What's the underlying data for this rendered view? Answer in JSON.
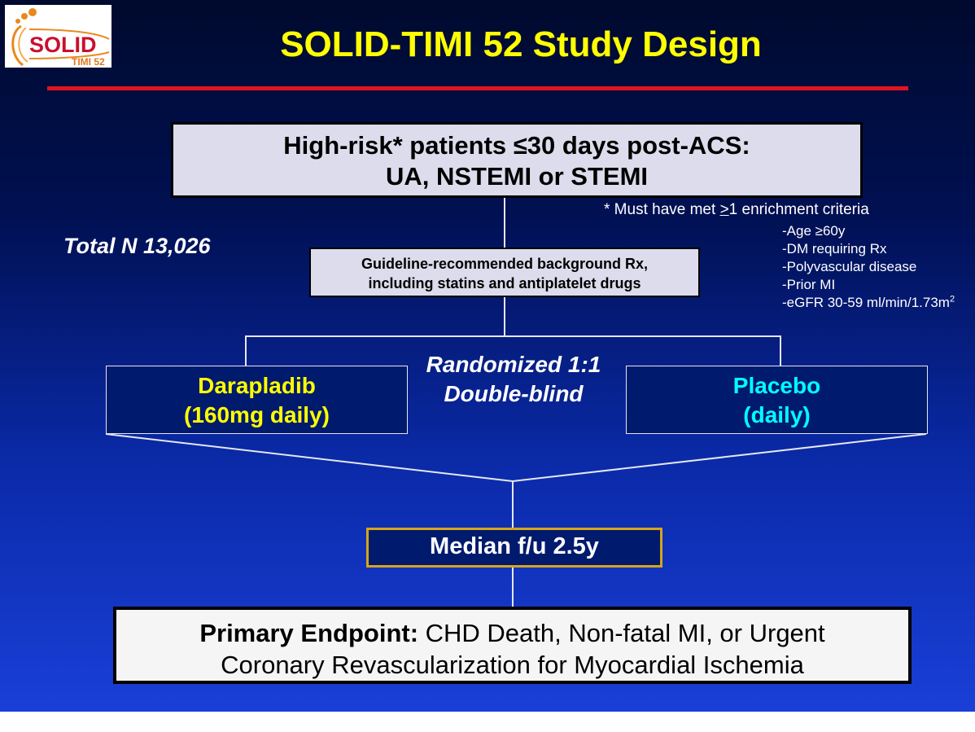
{
  "logo": {
    "word": "SOLID",
    "sub": "TIMI 52"
  },
  "title": "SOLID-TIMI 52 Study Design",
  "population": {
    "line1": "High-risk* patients ≤30 days post-ACS:",
    "line2": "UA, NSTEMI or STEMI"
  },
  "enrichment_note": {
    "prefix": "* Must have met ",
    "symbol": ">",
    "suffix": "1 enrichment criteria"
  },
  "criteria": [
    "-Age ≥60y",
    "-DM requiring Rx",
    "-Polyvascular disease",
    "-Prior MI"
  ],
  "egfr": {
    "text": "-eGFR 30-59 ml/min/1.73m",
    "sup": "2"
  },
  "total": "Total N 13,026",
  "background_rx": {
    "line1": "Guideline-recommended background Rx,",
    "line2": "including statins and antiplatelet drugs"
  },
  "randomization": {
    "line1": "Randomized 1:1",
    "line2": "Double-blind"
  },
  "arms": [
    {
      "line1": "Darapladib",
      "line2": "(160mg daily)",
      "color": "#ffff00"
    },
    {
      "line1": "Placebo",
      "line2": "(daily)",
      "color": "#00ffff"
    }
  ],
  "followup": "Median f/u 2.5y",
  "endpoint": {
    "label": "Primary Endpoint:",
    "text1": " CHD Death, Non-fatal MI, or Urgent",
    "text2": "Coronary Revascularization for Myocardial Ischemia"
  },
  "colors": {
    "title": "#ffff00",
    "accent_line": "#e0141e",
    "followup_border": "#d4a51c"
  }
}
